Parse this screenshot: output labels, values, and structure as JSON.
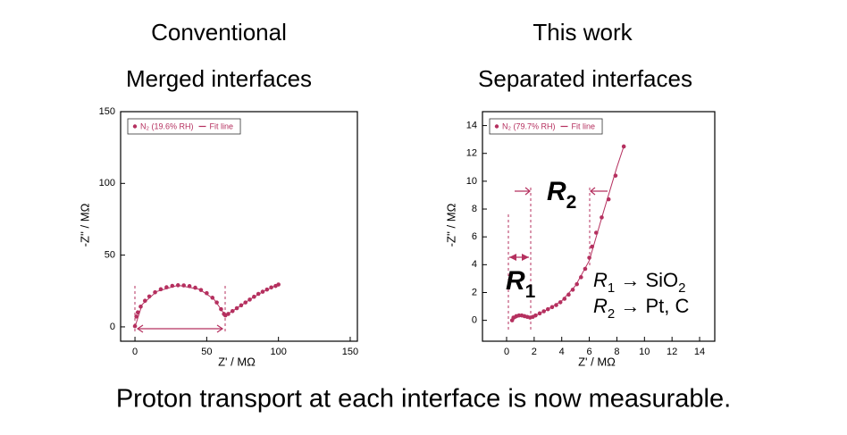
{
  "caption": "Proton transport at each interface is now measurable.",
  "chart_data": [
    {
      "type": "scatter",
      "title": "Conventional",
      "subtitle": "Merged interfaces",
      "x_label": "Z' / MΩ",
      "y_label": "-Z'' / MΩ",
      "xlim": [
        -10,
        155
      ],
      "ylim": [
        -10,
        150
      ],
      "xticks": [
        0,
        50,
        100,
        150
      ],
      "yticks": [
        0,
        50,
        100,
        150
      ],
      "color": "#b5305f",
      "legend": "upper left",
      "series": [
        {
          "name": "N₂ (19.6% RH)",
          "color": "#b5305f",
          "x": [
            0,
            1,
            2,
            4,
            7,
            10,
            14,
            18,
            22,
            26,
            30,
            34,
            38,
            42,
            46,
            50,
            54,
            57,
            60,
            62,
            63,
            65,
            68,
            71,
            74,
            77,
            80,
            83,
            86,
            89,
            92,
            95,
            98,
            100
          ],
          "values": [
            0.5,
            7.2,
            10.1,
            14.1,
            18.2,
            21.2,
            24.1,
            26.2,
            27.6,
            28.6,
            29,
            28.9,
            28.4,
            27.3,
            25.7,
            23.5,
            20.3,
            17,
            12.3,
            9,
            8,
            9,
            11,
            13,
            15,
            17,
            19,
            21,
            23,
            24.5,
            26,
            27.5,
            28.5,
            29.5
          ]
        },
        {
          "name": "Fit line",
          "color": "#b5305f",
          "x": [
            0,
            5,
            15,
            30,
            45,
            55,
            63,
            70,
            80,
            90,
            100
          ],
          "values": [
            0,
            15.6,
            24.6,
            29,
            26.2,
            19.4,
            8,
            12.3,
            19,
            25,
            29.5
          ]
        }
      ]
    },
    {
      "type": "scatter",
      "title": "This work",
      "subtitle": "Separated interfaces",
      "x_label": "Z' / MΩ",
      "y_label": "-Z'' / MΩ",
      "xlim": [
        -1.75,
        15.1
      ],
      "ylim": [
        -1.5,
        15
      ],
      "xticks": [
        0,
        2,
        4,
        6,
        8,
        10,
        12,
        14
      ],
      "yticks": [
        0,
        2,
        4,
        6,
        8,
        10,
        12,
        14
      ],
      "color": "#b5305f",
      "legend": "upper left",
      "series": [
        {
          "name": "N₂ (79.7% RH)",
          "color": "#b5305f",
          "x": [
            0.4,
            0.5,
            0.7,
            0.9,
            1.1,
            1.3,
            1.5,
            1.7,
            1.9,
            2.1,
            2.4,
            2.7,
            3.0,
            3.3,
            3.6,
            3.9,
            4.2,
            4.5,
            4.8,
            5.1,
            5.4,
            5.7,
            6.0,
            6.2,
            6.5,
            6.9,
            7.4,
            7.9,
            8.5
          ],
          "values": [
            0,
            0.2,
            0.3,
            0.35,
            0.35,
            0.3,
            0.25,
            0.2,
            0.25,
            0.35,
            0.5,
            0.65,
            0.8,
            0.95,
            1.1,
            1.3,
            1.55,
            1.85,
            2.2,
            2.6,
            3.1,
            3.7,
            4.5,
            5.3,
            6.3,
            7.4,
            8.7,
            10.4,
            12.5
          ]
        },
        {
          "name": "Fit line",
          "color": "#b5305f",
          "x": [
            0.4,
            1.0,
            1.6,
            2.0,
            3.0,
            4.0,
            5.0,
            6.0,
            7.0,
            8.0,
            8.5
          ],
          "values": [
            0,
            0.35,
            0.22,
            0.3,
            0.8,
            1.4,
            2.5,
            4.3,
            7.7,
            11,
            12.5
          ]
        }
      ],
      "annotations": [
        {
          "parts": [
            "R",
            "2"
          ]
        },
        {
          "parts": [
            "R",
            "1"
          ]
        },
        {
          "parts": [
            "R",
            "1",
            " → SiO",
            "2"
          ]
        },
        {
          "parts": [
            "R",
            "2",
            " → Pt, C"
          ]
        }
      ]
    }
  ]
}
